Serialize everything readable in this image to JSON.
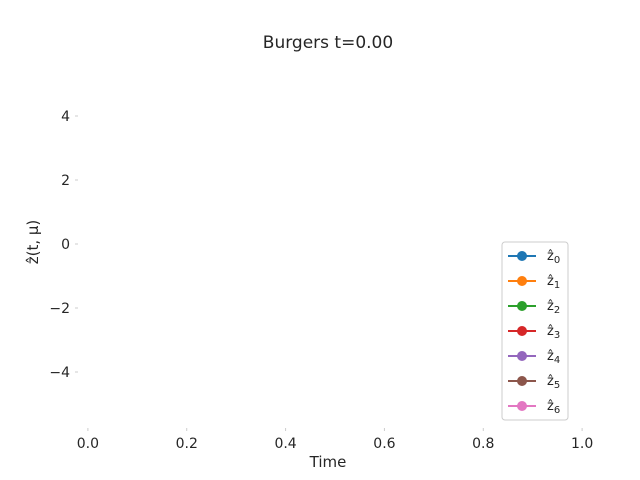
{
  "chart_data": {
    "type": "line",
    "title": "Burgers t=0.00",
    "xlabel": "Time",
    "ylabel": "ẑ(t, μ)",
    "xlim": [
      -0.02,
      1.02
    ],
    "ylim": [
      -5.75,
      5.75
    ],
    "xticks": [
      0.0,
      0.2,
      0.4,
      0.6,
      0.8,
      1.0
    ],
    "xtick_labels": [
      "0.0",
      "0.2",
      "0.4",
      "0.6",
      "0.8",
      "1.0"
    ],
    "yticks": [
      -4,
      -2,
      0,
      2,
      4
    ],
    "ytick_labels": [
      "−4",
      "−2",
      "0",
      "2",
      "4"
    ],
    "grid": false,
    "legend_position": "lower-right",
    "marker": "circle",
    "series": [
      {
        "name": "ẑ",
        "sub": "0",
        "color": "#1f77b4",
        "x": [],
        "y": []
      },
      {
        "name": "ẑ",
        "sub": "1",
        "color": "#ff7f0e",
        "x": [],
        "y": []
      },
      {
        "name": "ẑ",
        "sub": "2",
        "color": "#2ca02c",
        "x": [],
        "y": []
      },
      {
        "name": "ẑ",
        "sub": "3",
        "color": "#d62728",
        "x": [],
        "y": []
      },
      {
        "name": "ẑ",
        "sub": "4",
        "color": "#9467bd",
        "x": [],
        "y": []
      },
      {
        "name": "ẑ",
        "sub": "5",
        "color": "#8c564b",
        "x": [],
        "y": []
      },
      {
        "name": "ẑ",
        "sub": "6",
        "color": "#e377c2",
        "x": [],
        "y": []
      }
    ]
  }
}
